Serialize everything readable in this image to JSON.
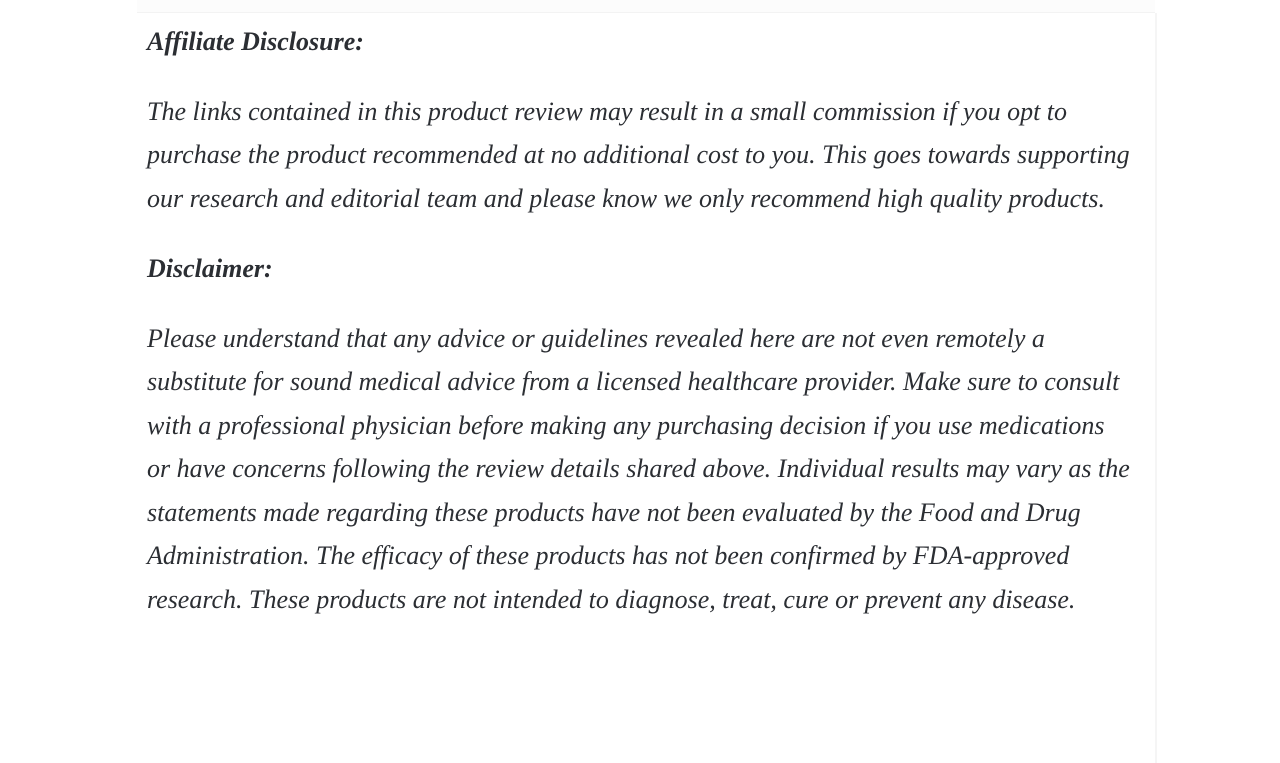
{
  "page": {
    "background_color": "#ffffff",
    "text_color": "#2b2e33"
  },
  "article": {
    "sections": [
      {
        "heading": "Affiliate Disclosure:",
        "paragraph": "The links contained in this product review may result in a small commission if you opt to purchase the product recommended at no additional cost to you. This goes towards supporting our research and editorial team and please know we only recommend high quality products."
      },
      {
        "heading": "Disclaimer:",
        "paragraph": "Please understand that any advice or guidelines revealed here are not even remotely a substitute for sound medical advice from a licensed healthcare provider. Make sure to consult with a professional physician before making any purchasing decision if you use medications or have concerns following the review details shared above. Individual results may vary as the statements made regarding these products have not been evaluated by the Food and Drug Administration. The efficacy of these products has not been confirmed by FDA-approved research. These products are not intended to diagnose, treat, cure or prevent any disease."
      }
    ]
  }
}
